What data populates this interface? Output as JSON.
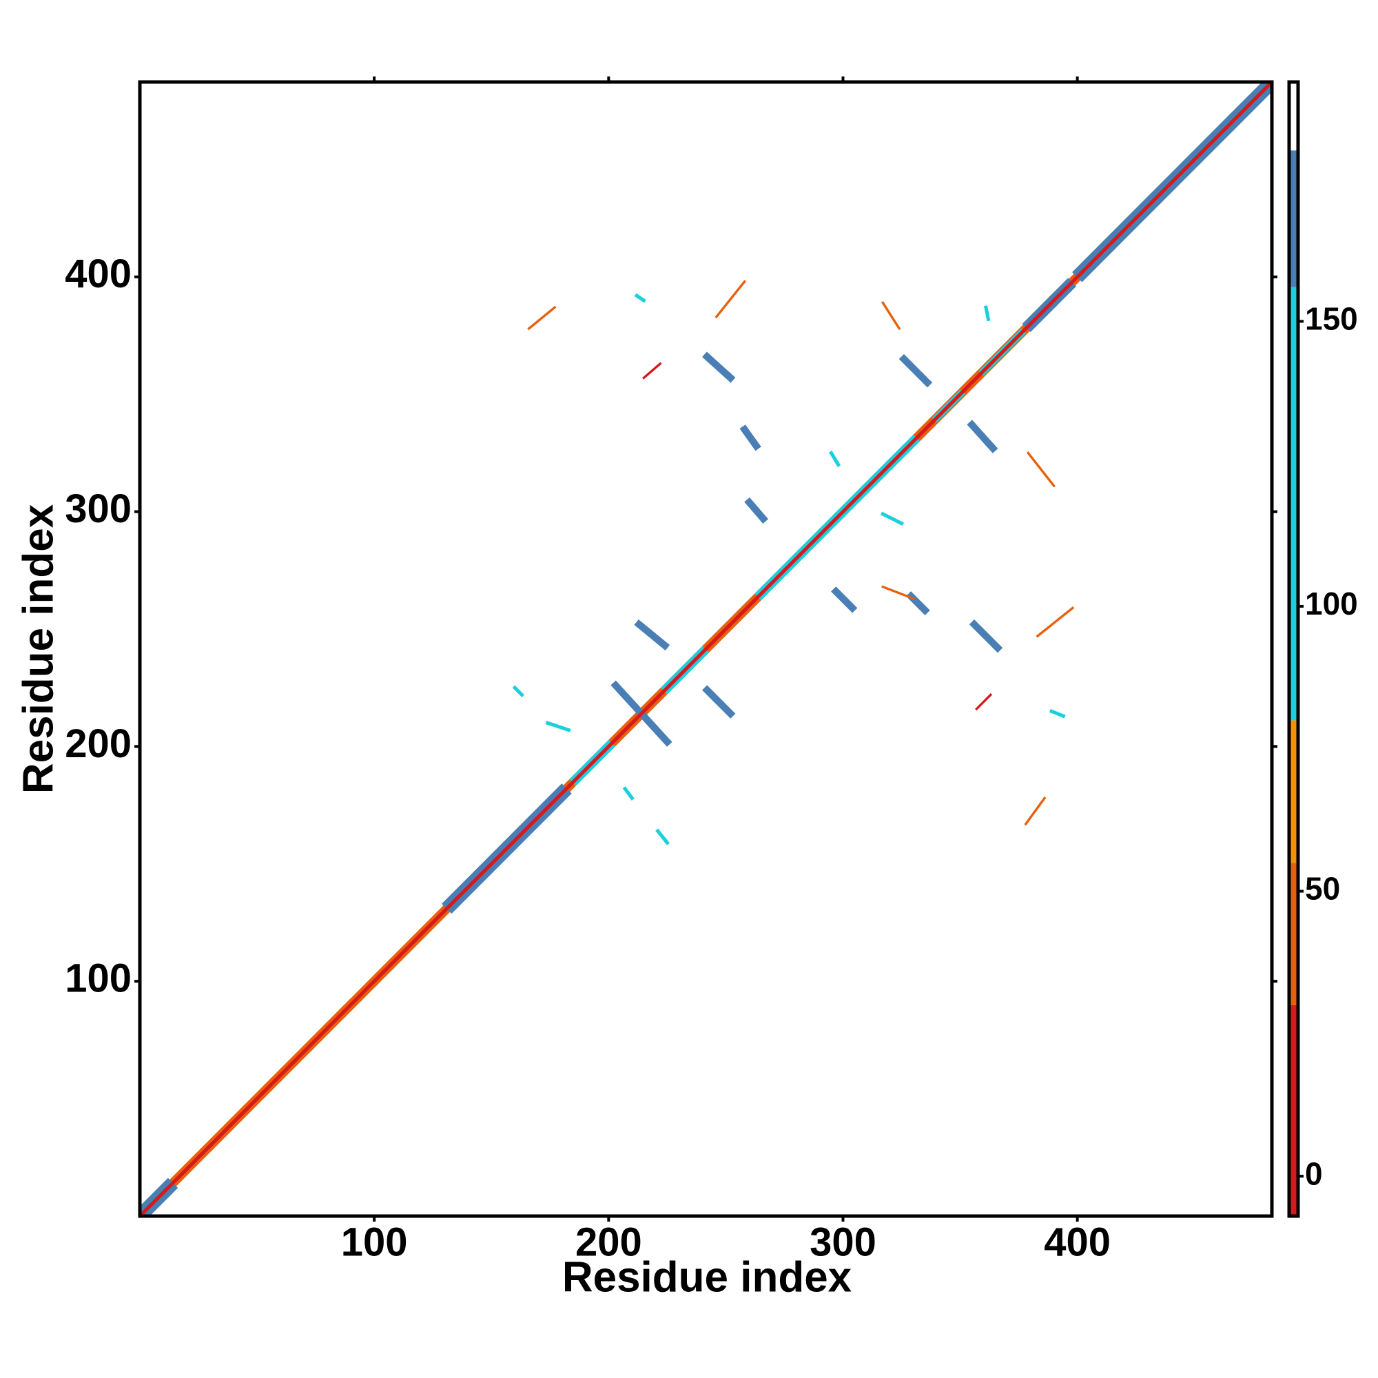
{
  "chart_data": {
    "type": "contact_map",
    "xlabel": "Residue index",
    "ylabel": "Residue index",
    "xlim": [
      0,
      483
    ],
    "ylim": [
      0,
      483
    ],
    "xticks": [
      100,
      200,
      300,
      400
    ],
    "yticks": [
      100,
      200,
      300,
      400
    ],
    "clim": [
      -7,
      192
    ],
    "cticks": [
      0,
      50,
      100,
      150
    ],
    "colorbar": [
      {
        "from": -7,
        "to": 30,
        "color": "#d7191c"
      },
      {
        "from": 30,
        "to": 55,
        "color": "#e8600a"
      },
      {
        "from": 55,
        "to": 80,
        "color": "#f39200"
      },
      {
        "from": 80,
        "to": 156,
        "color": "#1ad0dc"
      },
      {
        "from": 156,
        "to": 180,
        "color": "#4a7fb5"
      },
      {
        "from": 180,
        "to": 192,
        "color": "#ffffff"
      }
    ],
    "features": [
      {
        "x": [
          0,
          483
        ],
        "y": [
          0,
          483
        ],
        "value": 50,
        "width": 4
      },
      {
        "x": [
          0,
          12
        ],
        "y": [
          0,
          12
        ],
        "value": 165,
        "width": 6
      },
      {
        "x": [
          133,
          180
        ],
        "y": [
          133,
          180
        ],
        "value": 165,
        "width": 6
      },
      {
        "x": [
          380,
          396
        ],
        "y": [
          380,
          396
        ],
        "value": 165,
        "width": 5
      },
      {
        "x": [
          402,
          480
        ],
        "y": [
          402,
          480
        ],
        "value": 165,
        "width": 6
      },
      {
        "x": [
          186,
          200
        ],
        "y": [
          186,
          200
        ],
        "value": 100,
        "width": 4
      },
      {
        "x": [
          225,
          240
        ],
        "y": [
          225,
          240
        ],
        "value": 100,
        "width": 4
      },
      {
        "x": [
          265,
          330
        ],
        "y": [
          265,
          330
        ],
        "value": 100,
        "width": 4
      },
      {
        "x": [
          340,
          350
        ],
        "y": [
          340,
          350
        ],
        "value": 100,
        "width": 3
      },
      {
        "x": [
          360,
          376
        ],
        "y": [
          360,
          376
        ],
        "value": 100,
        "width": 3
      },
      {
        "x": [
          203,
          225
        ],
        "y": [
          226,
          202
        ],
        "value": 165,
        "width": 3
      },
      {
        "x": [
          213,
          224
        ],
        "y": [
          252,
          243
        ],
        "value": 165,
        "width": 3
      },
      {
        "x": [
          242,
          252
        ],
        "y": [
          366,
          357
        ],
        "value": 165,
        "width": 3
      },
      {
        "x": [
          242,
          252
        ],
        "y": [
          224,
          214
        ],
        "value": 165,
        "width": 3
      },
      {
        "x": [
          258,
          263
        ],
        "y": [
          335,
          328
        ],
        "value": 165,
        "width": 3
      },
      {
        "x": [
          260,
          266
        ],
        "y": [
          304,
          297
        ],
        "value": 165,
        "width": 3
      },
      {
        "x": [
          297,
          304
        ],
        "y": [
          266,
          259
        ],
        "value": 165,
        "width": 3
      },
      {
        "x": [
          326,
          336
        ],
        "y": [
          365,
          355
        ],
        "value": 165,
        "width": 3
      },
      {
        "x": [
          329,
          335
        ],
        "y": [
          264,
          258
        ],
        "value": 165,
        "width": 3
      },
      {
        "x": [
          355,
          364
        ],
        "y": [
          337,
          327
        ],
        "value": 165,
        "width": 3
      },
      {
        "x": [
          356,
          366
        ],
        "y": [
          252,
          242
        ],
        "value": 165,
        "width": 3
      },
      {
        "x": [
          166,
          177
        ],
        "y": [
          378,
          387
        ],
        "value": 50,
        "width": 1
      },
      {
        "x": [
          246,
          258
        ],
        "y": [
          383,
          398
        ],
        "value": 50,
        "width": 1
      },
      {
        "x": [
          215,
          222
        ],
        "y": [
          357,
          363
        ],
        "value": 10,
        "width": 1
      },
      {
        "x": [
          317,
          324
        ],
        "y": [
          389,
          378
        ],
        "value": 50,
        "width": 1
      },
      {
        "x": [
          379,
          390
        ],
        "y": [
          325,
          311
        ],
        "value": 50,
        "width": 1
      },
      {
        "x": [
          383,
          398
        ],
        "y": [
          247,
          259
        ],
        "value": 50,
        "width": 1
      },
      {
        "x": [
          357,
          363
        ],
        "y": [
          216,
          222
        ],
        "value": 10,
        "width": 1
      },
      {
        "x": [
          378,
          386
        ],
        "y": [
          167,
          178
        ],
        "value": 50,
        "width": 1
      },
      {
        "x": [
          317,
          330
        ],
        "y": [
          268,
          263
        ],
        "value": 50,
        "width": 1
      },
      {
        "x": [
          207,
          210
        ],
        "y": [
          182,
          178
        ],
        "value": 100,
        "width": 1.5
      },
      {
        "x": [
          221,
          225
        ],
        "y": [
          164,
          159
        ],
        "value": 100,
        "width": 1.5
      },
      {
        "x": [
          160,
          163
        ],
        "y": [
          225,
          222
        ],
        "value": 100,
        "width": 1.5
      },
      {
        "x": [
          174,
          183
        ],
        "y": [
          210,
          207
        ],
        "value": 100,
        "width": 1.5
      },
      {
        "x": [
          389,
          394
        ],
        "y": [
          215,
          213
        ],
        "value": 100,
        "width": 1.5
      },
      {
        "x": [
          212,
          215
        ],
        "y": [
          392,
          390
        ],
        "value": 100,
        "width": 1.5
      },
      {
        "x": [
          361,
          362
        ],
        "y": [
          387,
          382
        ],
        "value": 100,
        "width": 1.5
      },
      {
        "x": [
          295,
          298
        ],
        "y": [
          325,
          320
        ],
        "value": 100,
        "width": 1.5
      },
      {
        "x": [
          317,
          325
        ],
        "y": [
          299,
          295
        ],
        "value": 100,
        "width": 1.5
      },
      {
        "x": [
          0,
          483
        ],
        "y": [
          0,
          483
        ],
        "value": 5,
        "width": 1.5
      }
    ]
  }
}
